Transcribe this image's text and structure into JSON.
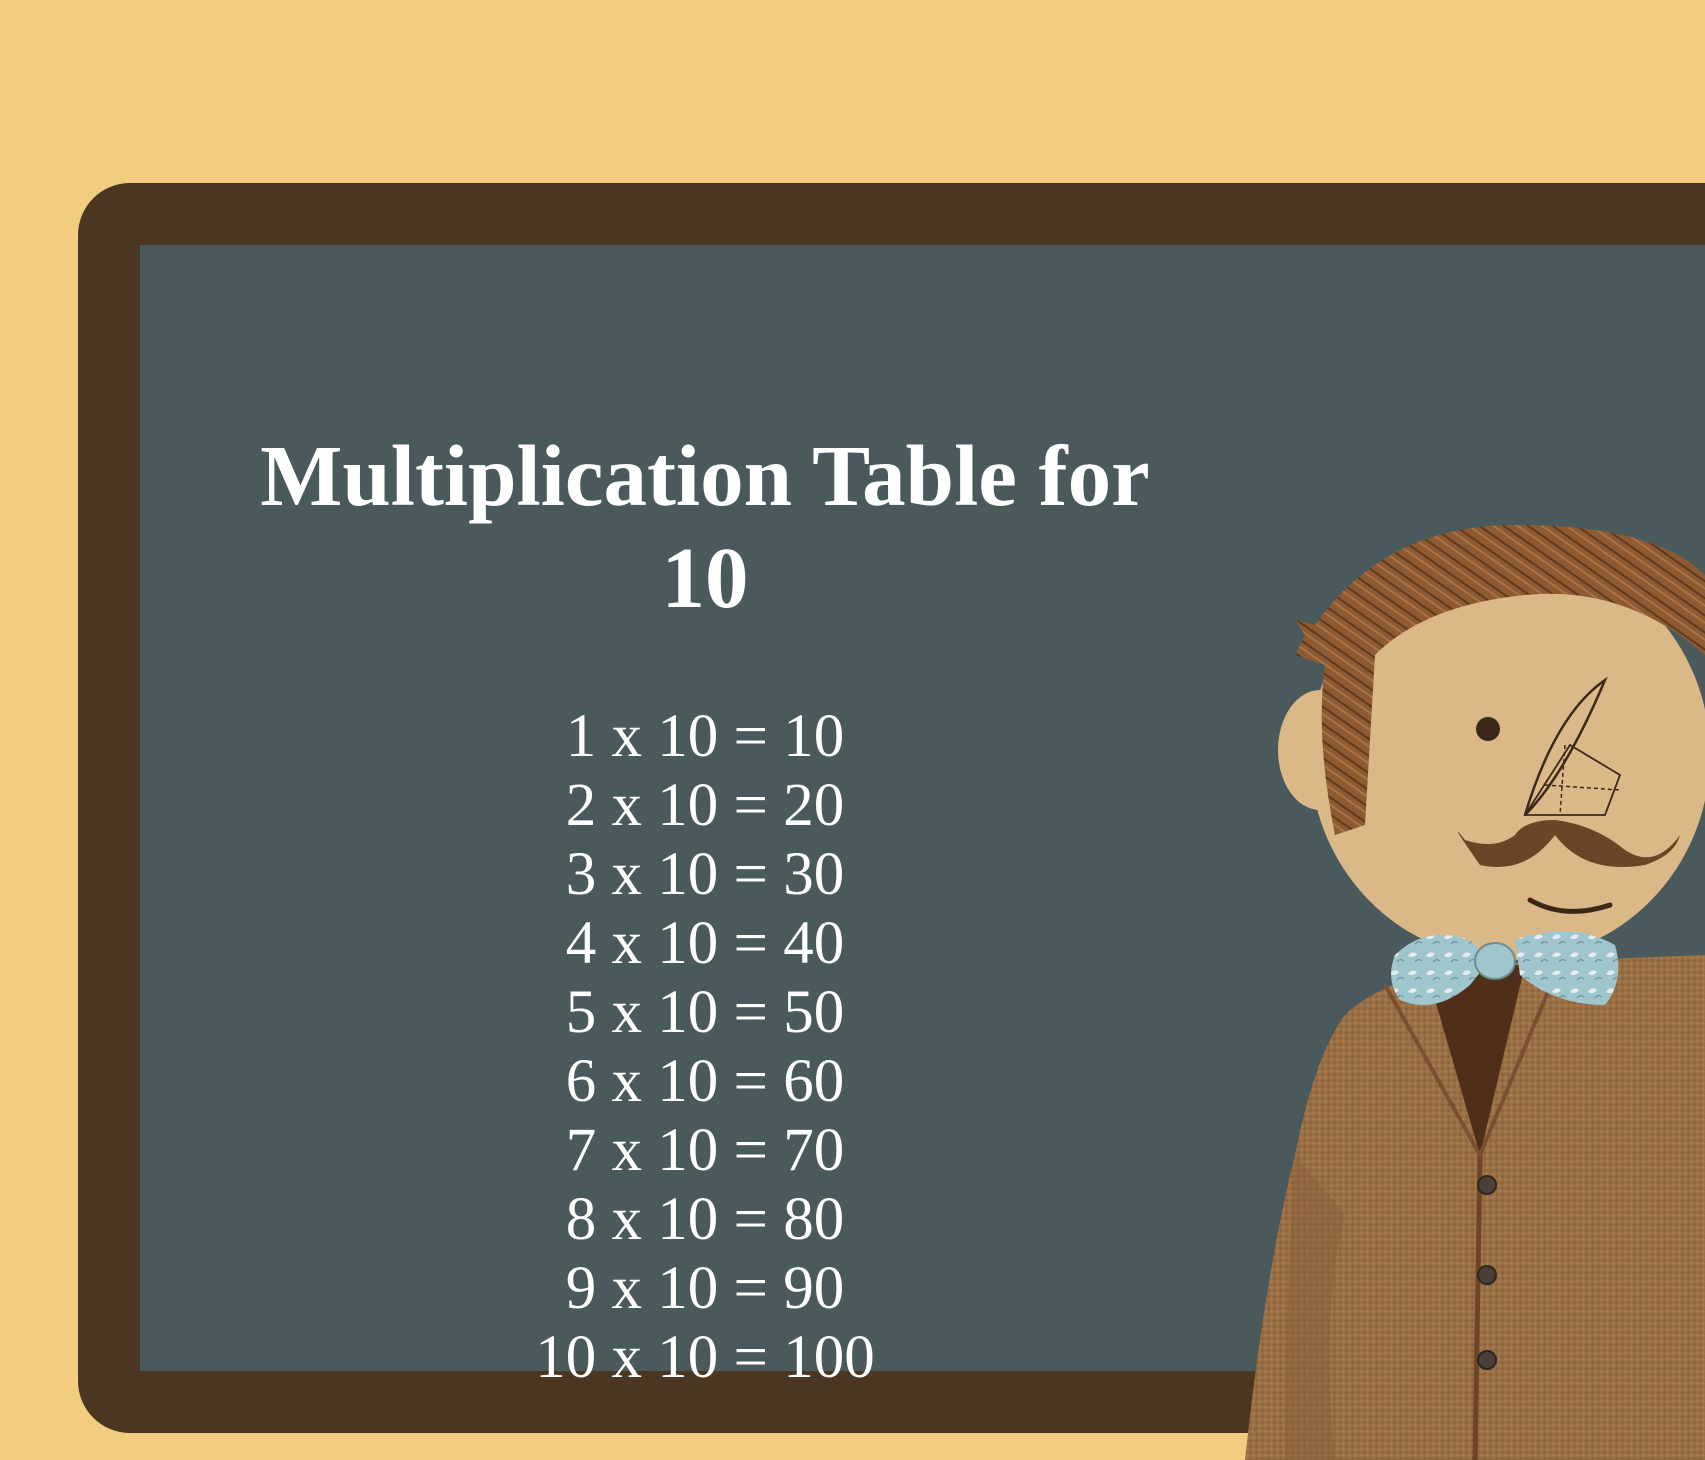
{
  "page": {
    "background_color": "#f2cd80",
    "board_frame_color": "#4b3621",
    "board_surface_color": "#4a5a5c"
  },
  "heading": {
    "line1": "Multiplication Table for",
    "line2": "10"
  },
  "table": {
    "rows": [
      "1 x 10 = 10",
      "2 x 10 = 20",
      "3 x 10 = 30",
      "4 x 10 = 40",
      "5 x 10 = 50",
      "6 x 10 = 60",
      "7 x 10 = 70",
      "8 x 10 = 80",
      "9 x 10 = 90",
      "10 x 10 = 100"
    ]
  },
  "illustration": {
    "subject": "teacher",
    "icon": "teacher-with-mustache-icon"
  }
}
